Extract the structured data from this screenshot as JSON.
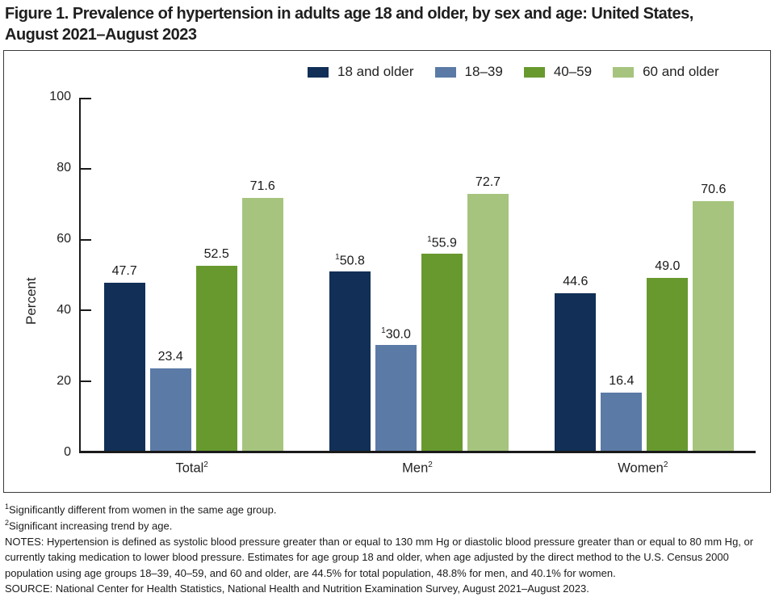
{
  "title": {
    "line1": "Figure 1. Prevalence of hypertension in adults age 18 and older, by sex and age: United States,",
    "line2": "August 2021–August 2023"
  },
  "chart_data": {
    "type": "bar",
    "title": "Figure 1. Prevalence of hypertension in adults age 18 and older, by sex and age: United States, August 2021–August 2023",
    "ylabel": "Percent",
    "xlabel": "",
    "ylim": [
      0,
      100
    ],
    "yticks": [
      0,
      20,
      40,
      60,
      80,
      100
    ],
    "grid": false,
    "legend_position": "top",
    "categories": [
      {
        "label": "Total",
        "sup": "2"
      },
      {
        "label": "Men",
        "sup": "2"
      },
      {
        "label": "Women",
        "sup": "2"
      }
    ],
    "series": [
      {
        "name": "18 and older",
        "color": "#112f57",
        "values": [
          47.7,
          50.8,
          44.6
        ],
        "value_sups": [
          "",
          "1",
          ""
        ]
      },
      {
        "name": "18–39",
        "color": "#5b7aa6",
        "values": [
          23.4,
          30.0,
          16.4
        ],
        "value_sups": [
          "",
          "1",
          ""
        ]
      },
      {
        "name": "40–59",
        "color": "#68992f",
        "values": [
          52.5,
          55.9,
          49.0
        ],
        "value_sups": [
          "",
          "1",
          ""
        ]
      },
      {
        "name": "60 and older",
        "color": "#a6c47e",
        "values": [
          71.6,
          72.7,
          70.6
        ],
        "value_sups": [
          "",
          "",
          ""
        ]
      }
    ]
  },
  "footnotes": [
    {
      "sup": "1",
      "text": "Significantly different from women in the same age group."
    },
    {
      "sup": "2",
      "text": "Significant increasing trend by age."
    },
    {
      "sup": "",
      "text": "NOTES: Hypertension is defined as systolic blood pressure greater than or equal to 130 mm Hg or diastolic blood pressure greater than or equal to 80 mm Hg, or currently taking medication to lower blood pressure. Estimates for age group 18 and older, when age adjusted by the direct method to the U.S. Census 2000 population using age groups 18–39, 40–59, and 60 and older, are 44.5% for total population, 48.8% for men, and 40.1% for women."
    },
    {
      "sup": "",
      "text": "SOURCE: National Center for Health Statistics, National Health and Nutrition Examination Survey, August 2021–August 2023."
    }
  ],
  "colors": {
    "axis": "#1a1a1a",
    "border": "#3a3a3a",
    "text": "#1a1a1a"
  }
}
